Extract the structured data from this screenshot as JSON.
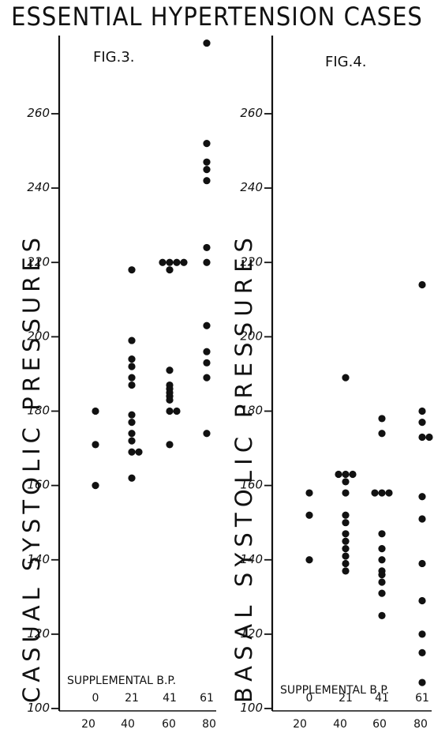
{
  "title": "ESSENTIAL HYPERTENSION CASES",
  "chart_data": [
    {
      "type": "scatter",
      "title": "FIG.3.",
      "ylabel": "CASUAL SYSTOLIC PRESSURES",
      "xlabel": "SUPPLEMENTAL B.P.",
      "ylim": [
        100,
        280
      ],
      "yticks": [
        100,
        120,
        140,
        160,
        180,
        200,
        220,
        240,
        260
      ],
      "xtick_labels_top": [
        "0",
        "21",
        "41",
        "61"
      ],
      "xtick_labels_bottom": [
        "20",
        "40",
        "60",
        "80"
      ],
      "series": [
        {
          "x": "0-20",
          "values": [
            180,
            171,
            160
          ]
        },
        {
          "x": "21-40",
          "values": [
            218,
            199,
            194,
            192,
            189,
            187,
            179,
            177,
            174,
            172,
            169,
            169,
            162
          ]
        },
        {
          "x": "41-60",
          "values": [
            220,
            220,
            220,
            220,
            218,
            191,
            187,
            186,
            185,
            184,
            183,
            180,
            180,
            171
          ]
        },
        {
          "x": "61-80",
          "values": [
            279,
            252,
            247,
            245,
            242,
            224,
            220,
            203,
            196,
            193,
            189,
            174
          ]
        }
      ]
    },
    {
      "type": "scatter",
      "title": "FIG.4.",
      "ylabel": "BASAL SYSTOLIC PRESSURES",
      "xlabel": "SUPPLEMENTAL B.P.",
      "ylim": [
        100,
        280
      ],
      "yticks": [
        100,
        120,
        140,
        160,
        180,
        200,
        220,
        240,
        260
      ],
      "xtick_labels_top": [
        "0",
        "21",
        "41",
        "61"
      ],
      "xtick_labels_bottom": [
        "20",
        "40",
        "60",
        "80"
      ],
      "series": [
        {
          "x": "0-20",
          "values": [
            158,
            152,
            140
          ]
        },
        {
          "x": "21-40",
          "values": [
            189,
            163,
            163,
            163,
            161,
            158,
            152,
            150,
            147,
            145,
            143,
            141,
            139,
            137
          ]
        },
        {
          "x": "41-60",
          "values": [
            178,
            174,
            158,
            158,
            158,
            147,
            143,
            140,
            137,
            136,
            134,
            131,
            125
          ]
        },
        {
          "x": "61-80",
          "values": [
            180,
            177,
            173,
            173,
            157,
            151,
            139,
            129,
            120,
            115,
            107,
            214
          ]
        }
      ]
    }
  ]
}
